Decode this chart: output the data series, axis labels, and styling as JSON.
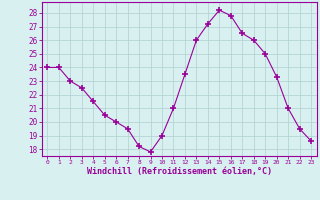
{
  "x": [
    0,
    1,
    2,
    3,
    4,
    5,
    6,
    7,
    8,
    9,
    10,
    11,
    12,
    13,
    14,
    15,
    16,
    17,
    18,
    19,
    20,
    21,
    22,
    23
  ],
  "y": [
    24.0,
    24.0,
    23.0,
    22.5,
    21.5,
    20.5,
    20.0,
    19.5,
    18.2,
    17.8,
    19.0,
    21.0,
    23.5,
    26.0,
    27.2,
    28.2,
    27.8,
    26.5,
    26.0,
    25.0,
    23.3,
    21.0,
    19.5,
    18.6
  ],
  "line_color": "#990099",
  "marker": "+",
  "bg_color": "#d8f0f0",
  "grid_color": "#b0d0d0",
  "xlabel": "Windchill (Refroidissement éolien,°C)",
  "ylim": [
    17.5,
    28.8
  ],
  "xlim": [
    -0.5,
    23.5
  ],
  "yticks": [
    18,
    19,
    20,
    21,
    22,
    23,
    24,
    25,
    26,
    27,
    28
  ],
  "xticks": [
    0,
    1,
    2,
    3,
    4,
    5,
    6,
    7,
    8,
    9,
    10,
    11,
    12,
    13,
    14,
    15,
    16,
    17,
    18,
    19,
    20,
    21,
    22,
    23
  ],
  "xlabel_color": "#990099",
  "tick_color": "#990099",
  "axis_color": "#990099"
}
